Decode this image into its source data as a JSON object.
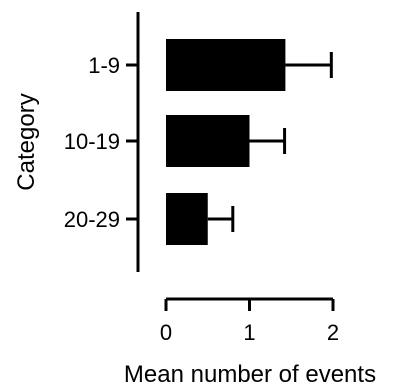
{
  "chart_data": {
    "type": "bar",
    "orientation": "horizontal",
    "categories": [
      "1-9",
      "10-19",
      "20-29"
    ],
    "values": [
      1.43,
      1.0,
      0.5
    ],
    "error": [
      0.55,
      0.42,
      0.3
    ],
    "xlabel": "Mean number of events",
    "ylabel": "Category",
    "xlim": [
      0,
      2
    ],
    "xticks": [
      "0",
      "1",
      "2"
    ],
    "grid": false,
    "legend": "none",
    "bar_color": "#000000"
  }
}
